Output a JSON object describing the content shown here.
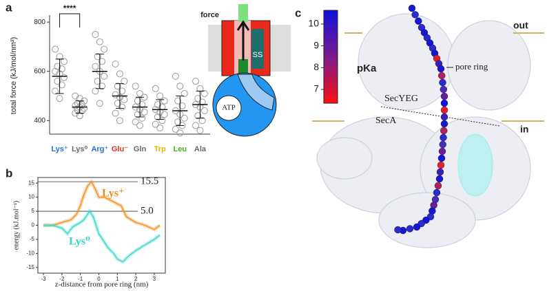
{
  "panel_letters": [
    "a",
    "b",
    "c"
  ],
  "chart_data": [
    {
      "type": "strip",
      "ylabel": "total force (kJ/mol/nm²)",
      "categories": [
        "Lys⁺",
        "Lys⁰",
        "Arg⁺",
        "Glu⁻",
        "Gln",
        "Trp",
        "Leu",
        "Ala"
      ],
      "label_colors": [
        "#1f6fd6",
        "#666666",
        "#1f6fd6",
        "#e0301e",
        "#666666",
        "#e8b400",
        "#4caf1a",
        "#666666"
      ],
      "points": [
        [
          690,
          660,
          640,
          620,
          610,
          600,
          590,
          575,
          560,
          545,
          520,
          490
        ],
        [
          500,
          490,
          480,
          470,
          465,
          460,
          455,
          450,
          445,
          440,
          430,
          420
        ],
        [
          750,
          720,
          690,
          660,
          640,
          620,
          600,
          580,
          560,
          540,
          520,
          470
        ],
        [
          630,
          590,
          560,
          540,
          520,
          505,
          495,
          485,
          470,
          455,
          430,
          400
        ],
        [
          540,
          510,
          495,
          480,
          465,
          455,
          445,
          435,
          425,
          410,
          395,
          380
        ],
        [
          530,
          500,
          480,
          465,
          455,
          445,
          435,
          425,
          415,
          400,
          385,
          370
        ],
        [
          580,
          540,
          510,
          480,
          460,
          440,
          425,
          410,
          395,
          380,
          365,
          350
        ],
        [
          560,
          530,
          510,
          490,
          475,
          465,
          455,
          440,
          420,
          400,
          380,
          360
        ]
      ],
      "means": [
        580,
        455,
        600,
        500,
        455,
        445,
        440,
        465
      ],
      "sd": [
        70,
        25,
        70,
        50,
        40,
        40,
        60,
        55
      ],
      "point_color": "#999999",
      "ylim": [
        345,
        820
      ],
      "yticks": [
        400,
        600,
        800
      ],
      "significance": "****"
    },
    {
      "type": "line",
      "xlabel": "z-distance from pore ring (nm)",
      "ylabel": "energy (kJ.mol⁻¹)",
      "series": [
        {
          "name": "Lys⁺",
          "color": "#f08c1e",
          "x": [
            -3.0,
            -2.5,
            -2.0,
            -1.5,
            -1.2,
            -1.0,
            -0.8,
            -0.6,
            -0.4,
            -0.2,
            0.0,
            0.3,
            0.6,
            0.9,
            1.2,
            1.5,
            2.0,
            2.5,
            3.0,
            3.3
          ],
          "values": [
            0,
            0,
            1,
            2,
            4,
            7,
            11,
            14,
            15.5,
            13,
            10,
            10,
            9,
            8,
            7,
            3,
            1,
            0,
            -1.5,
            0
          ]
        },
        {
          "name": "Lys⁰",
          "color": "#35d6c6",
          "x": [
            -3.0,
            -2.5,
            -2.0,
            -1.7,
            -1.4,
            -1.0,
            -0.8,
            -0.5,
            -0.3,
            0.0,
            0.3,
            0.5,
            0.8,
            1.0,
            1.3,
            1.6,
            2.0,
            2.5,
            3.0,
            3.3
          ],
          "values": [
            0,
            0,
            -1,
            -3,
            -0.5,
            1,
            2,
            5,
            3,
            -3,
            -6,
            -8,
            -10,
            -12,
            -13,
            -11,
            -9,
            -7,
            -5,
            -3.5
          ]
        }
      ],
      "reference_lines": [
        {
          "value": 15.5,
          "label": "15.5"
        },
        {
          "value": 5,
          "label": "5.0"
        }
      ],
      "xlim": [
        -3.3,
        3.6
      ],
      "xticks": [
        -3,
        -2,
        -1,
        0,
        1,
        2,
        3
      ],
      "ylim": [
        -17,
        17
      ],
      "yticks": [
        -15,
        -10,
        -5,
        0,
        5,
        10,
        15
      ]
    }
  ],
  "panel_a_diagram": {
    "force": "force",
    "ss": "SS",
    "atp": "ATP"
  },
  "panel_c": {
    "colorbar": {
      "label": "pKa",
      "lim": [
        6.37,
        10.63
      ],
      "ticks": [
        7,
        8,
        9,
        10
      ]
    },
    "out": "out",
    "in": "in",
    "secyeg": "SecYEG",
    "seca": "SecA",
    "pore_ring": "pore ring"
  }
}
